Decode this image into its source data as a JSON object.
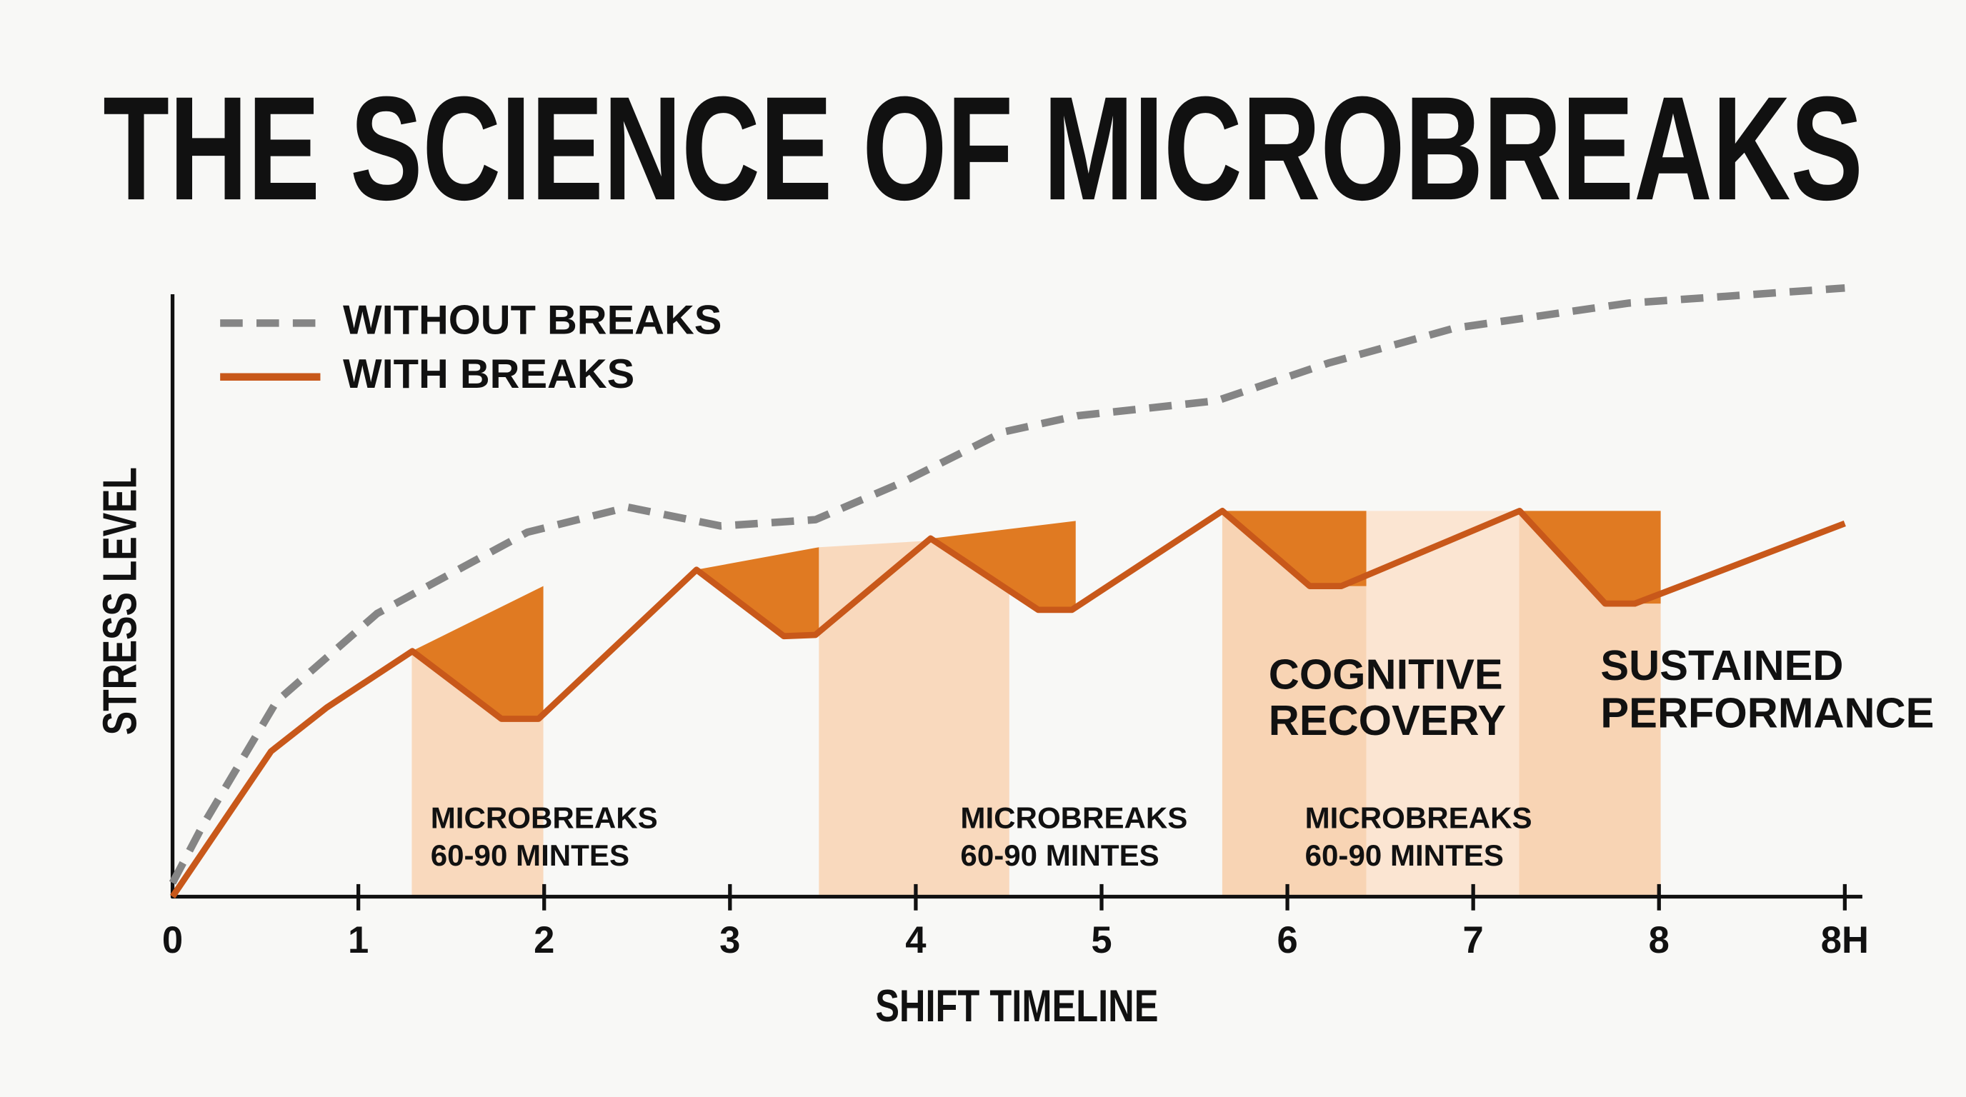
{
  "chart_data": {
    "type": "line",
    "title": "THE SCIENCE OF MICROBREAKS",
    "x_label": "SHIFT TIMELINE",
    "y_label": "STRESS LEVEL",
    "xlim": [
      0,
      9
    ],
    "xticks": [
      0,
      1,
      2,
      3,
      4,
      5,
      6,
      7,
      8,
      {
        "value": 9,
        "label": "8H"
      }
    ],
    "ylim": [
      0,
      100
    ],
    "legend": "top-left",
    "series": [
      {
        "name": "WITHOUT BREAKS",
        "color": "#858585",
        "line_style": "dashed",
        "x": [
          0,
          0.16,
          0.56,
          1.1,
          1.91,
          2.45,
          2.95,
          3.46,
          3.93,
          4.47,
          4.87,
          5.62,
          6.22,
          6.9,
          7.84,
          9
        ],
        "values": [
          2.2,
          11.2,
          31.2,
          45.2,
          58.2,
          62.2,
          59.2,
          60.2,
          66.2,
          74.2,
          76.8,
          79.2,
          85.2,
          90.8,
          94.8,
          97.2
        ]
      },
      {
        "name": "WITH BREAKS",
        "color": "#c8581a",
        "line_style": "solid",
        "x": [
          0,
          0.53,
          0.83,
          1.29,
          1.77,
          1.97,
          2.82,
          3.29,
          3.46,
          4.08,
          4.66,
          4.84,
          5.65,
          6.12,
          6.29,
          7.25,
          7.71,
          7.87,
          9
        ],
        "values": [
          0,
          23.2,
          30.2,
          39.2,
          28.4,
          28.4,
          52.2,
          41.6,
          41.8,
          57.2,
          45.8,
          45.8,
          61.6,
          49.6,
          49.6,
          61.6,
          46.8,
          46.8,
          59.6
        ]
      }
    ],
    "annotations": [
      [
        "MICROBREAKS",
        "60-90 MINTES"
      ],
      [
        "MICROBREAKS",
        "60-90 MINTES"
      ],
      [
        "MICROBREAKS",
        "60-90 MINTES"
      ],
      [
        "COGNITIVE",
        "RECOVERY"
      ],
      [
        "SUSTAINED",
        "PERFORMANCE"
      ]
    ]
  }
}
